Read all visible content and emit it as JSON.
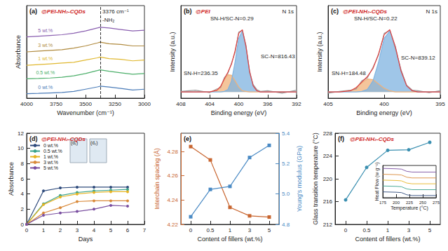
{
  "chart_data": [
    {
      "type": "line",
      "title": "(a)",
      "subtitle": "@PEI-NH₂-CQDs",
      "x_label": "Wavenumber (cm⁻¹)",
      "y_label": "Absorbance",
      "x": [
        4000,
        3900,
        3800,
        3700,
        3600,
        3500,
        3400,
        3376,
        3300,
        3200,
        3100,
        3000
      ],
      "xlim": [
        4000,
        3000
      ],
      "xticks": [
        4000,
        3750,
        3500,
        3250,
        3000
      ],
      "ylim": [
        -0.2,
        6
      ],
      "tick_labels": "x",
      "grid": false,
      "annotations": [
        {
          "text": "3376 cm⁻¹",
          "x": 3376
        },
        {
          "text": "-NH₂"
        }
      ],
      "series": [
        {
          "name": "5 wt.%",
          "color": "#8a5fb0",
          "values": [
            3.9,
            3.95,
            4.0,
            4.05,
            4.15,
            4.3,
            4.5,
            4.55,
            4.5,
            4.4,
            4.3,
            4.35
          ]
        },
        {
          "name": "3 wt.%",
          "color": "#b08a3e",
          "values": [
            2.9,
            2.95,
            3.0,
            3.05,
            3.15,
            3.3,
            3.5,
            3.55,
            3.45,
            3.4,
            3.3,
            3.3
          ]
        },
        {
          "name": "1 wt.%",
          "color": "#e0b830",
          "values": [
            2.0,
            2.05,
            2.1,
            2.15,
            2.2,
            2.35,
            2.5,
            2.55,
            2.45,
            2.4,
            2.3,
            2.35
          ]
        },
        {
          "name": "0.5 wt.%",
          "color": "#4caf6a",
          "values": [
            1.1,
            1.12,
            1.15,
            1.2,
            1.3,
            1.45,
            1.65,
            1.7,
            1.6,
            1.5,
            1.4,
            1.45
          ]
        },
        {
          "name": "0 wt.%",
          "color": "#4a7bb8",
          "values": [
            0.1,
            0.12,
            0.15,
            0.18,
            0.25,
            0.4,
            0.55,
            0.6,
            0.55,
            0.45,
            0.35,
            0.4
          ]
        }
      ]
    },
    {
      "type": "line",
      "title": "(b)",
      "subtitle": "@PEI",
      "x_label": "Binding energy (eV)",
      "y_label": "Intensity (a.u.)",
      "x": [
        392,
        394,
        396,
        397,
        397.5,
        398,
        398.5,
        399,
        399.5,
        400,
        400.5,
        401,
        401.5,
        402,
        402.5,
        403,
        404,
        406,
        408
      ],
      "xlim": [
        408,
        392
      ],
      "xticks": [
        408,
        404,
        400,
        396,
        392
      ],
      "ylim": [
        -0.1,
        1.4
      ],
      "tick_labels": "x",
      "grid": false,
      "annotations": [
        {
          "text": "N 1s"
        },
        {
          "text": "SN-H/SC-N=0.29"
        },
        {
          "text": "SN-H=236.35"
        },
        {
          "text": "SC-N=816.43"
        }
      ],
      "series": [
        {
          "type": "line",
          "color": "#9a9a9a",
          "values": [
            0.03,
            -0.02,
            0.02,
            0.01,
            0.04,
            0.12,
            0.31,
            0.76,
            1.0,
            0.97,
            0.64,
            0.47,
            0.3,
            0.23,
            0.07,
            0.05,
            -0.01,
            0.03,
            0.01
          ]
        },
        {
          "type": "area",
          "color": "#f0b27a",
          "values": [
            0,
            0,
            0,
            0,
            0,
            0,
            0,
            0.01,
            0.02,
            0.08,
            0.18,
            0.27,
            0.28,
            0.2,
            0.09,
            0.03,
            0,
            0,
            0
          ]
        },
        {
          "type": "area",
          "color": "#7fb3e0",
          "values": [
            0,
            0,
            0,
            0,
            0.02,
            0.1,
            0.34,
            0.73,
            0.99,
            0.87,
            0.49,
            0.18,
            0.04,
            0.01,
            0,
            0,
            0,
            0,
            0
          ]
        },
        {
          "type": "line",
          "color": "#e04040",
          "values": [
            0,
            0,
            0,
            0,
            0.02,
            0.1,
            0.34,
            0.74,
            1.01,
            0.95,
            0.67,
            0.45,
            0.32,
            0.21,
            0.09,
            0.03,
            0,
            0,
            0
          ]
        }
      ]
    },
    {
      "type": "line",
      "title": "(c)",
      "subtitle": "@PEI-NH₂-CQDs",
      "x_label": "Binding energy (eV)",
      "y_label": "Intensity (a.u.)",
      "x": [
        395,
        396,
        397,
        397.5,
        398,
        398.5,
        399,
        399.5,
        400,
        400.5,
        401,
        401.5,
        402,
        402.5,
        403,
        404,
        405
      ],
      "xlim": [
        405,
        395
      ],
      "xticks": [
        405,
        400,
        395
      ],
      "ylim": [
        -0.1,
        1.4
      ],
      "tick_labels": "x",
      "grid": false,
      "annotations": [
        {
          "text": "N 1s"
        },
        {
          "text": "SN-H/SC-N=0.22"
        },
        {
          "text": "SN-H=184.48"
        },
        {
          "text": "SC-N=839.12"
        }
      ],
      "series": [
        {
          "type": "line",
          "color": "#9a9a9a",
          "values": [
            0.02,
            -0.01,
            0.02,
            0.03,
            0.11,
            0.36,
            0.7,
            1.0,
            0.95,
            0.6,
            0.4,
            0.23,
            0.18,
            0.05,
            0.03,
            0.01,
            -0.02
          ]
        },
        {
          "type": "area",
          "color": "#f0b27a",
          "values": [
            0,
            0,
            0,
            0,
            0,
            0,
            0,
            0.02,
            0.06,
            0.13,
            0.2,
            0.21,
            0.15,
            0.07,
            0.02,
            0,
            0
          ]
        },
        {
          "type": "area",
          "color": "#7fb3e0",
          "values": [
            0,
            0,
            0,
            0.02,
            0.1,
            0.34,
            0.73,
            0.99,
            0.87,
            0.49,
            0.18,
            0.04,
            0.01,
            0,
            0,
            0,
            0
          ]
        },
        {
          "type": "line",
          "color": "#e04040",
          "values": [
            0,
            0,
            0,
            0.02,
            0.1,
            0.34,
            0.73,
            1.01,
            0.93,
            0.62,
            0.38,
            0.25,
            0.16,
            0.07,
            0.02,
            0,
            0
          ]
        }
      ]
    },
    {
      "type": "line",
      "title": "(d)",
      "subtitle": "@PEI-NH₂-CQDs",
      "x_label": "Days",
      "y_label": "Absorbance",
      "x": [
        0,
        1,
        2,
        3,
        4,
        5,
        6
      ],
      "xlim": [
        0,
        7
      ],
      "xticks": [
        0,
        1,
        2,
        3,
        4,
        5,
        6,
        7
      ],
      "ylim": [
        0,
        12
      ],
      "yticks": [
        0,
        2,
        4,
        6,
        8,
        10,
        12
      ],
      "grid": false,
      "legend": "upper left",
      "marker": "circle",
      "annotations": [
        {
          "text": "(d₁)"
        },
        {
          "text": "(d₂)"
        }
      ],
      "series": [
        {
          "name": "0 wt.%",
          "color": "#2f4b7c",
          "values": [
            0,
            4.4,
            4.8,
            4.9,
            4.9,
            4.9,
            4.9
          ]
        },
        {
          "name": "0.5 wt.%",
          "color": "#3aa38b",
          "values": [
            0,
            2.7,
            3.8,
            4.2,
            4.4,
            4.5,
            4.6
          ]
        },
        {
          "name": "1 wt.%",
          "color": "#e6b422",
          "values": [
            0,
            2.6,
            3.6,
            4.0,
            4.2,
            4.3,
            4.3
          ]
        },
        {
          "name": "3 wt.%",
          "color": "#d98a3a",
          "values": [
            0,
            1.5,
            2.2,
            3.0,
            3.1,
            3.1,
            3.1
          ]
        },
        {
          "name": "5 wt.%",
          "color": "#7a4fa0",
          "values": [
            0,
            1.2,
            1.5,
            1.7,
            2.0,
            2.5,
            2.4
          ]
        }
      ]
    },
    {
      "type": "line",
      "title": "(e)",
      "x_label": "Content of fillers (wt.%)",
      "y_label": "Interchain spacing (Å)",
      "y2_label": "Young's modulus (GPa)",
      "categories": [
        "0",
        "0.5",
        "1",
        "3",
        "5"
      ],
      "ylim": [
        4.22,
        4.295
      ],
      "yticks": [
        4.22,
        4.24,
        4.26,
        4.28
      ],
      "y2lim": [
        4.8,
        5.4
      ],
      "y2ticks": [
        4.8,
        {
          "value": 5,
          "label": "5.0"
        },
        5.2,
        5.4
      ],
      "grid": false,
      "marker": "square",
      "series": [
        {
          "color": "#c8652f",
          "values": [
            4.284,
            4.273,
            4.234,
            4.227,
            4.226
          ]
        },
        {
          "color": "#4a8ac4",
          "axis": "y2",
          "values": [
            4.85,
            5.03,
            5.05,
            5.24,
            5.32
          ]
        }
      ]
    },
    {
      "type": "line",
      "title": "(f)",
      "subtitle": "@PEI-NH₂-CQDs",
      "x_label": "Content of fillers (wt.%)",
      "y_label": "Glass transition temperature (°C)",
      "categories": [
        "0",
        "0.5",
        "1",
        "3",
        "5"
      ],
      "ylim": [
        212,
        228
      ],
      "yticks": [
        212,
        216,
        220,
        224,
        228
      ],
      "grid": false,
      "marker": "circle",
      "series": [
        {
          "color": "#3a8fb0",
          "values": [
            216.3,
            222.0,
            225.0,
            225.1,
            226.4
          ]
        }
      ]
    },
    {
      "type": "line",
      "x_label": "Temperature (°C)",
      "y_label": "Heat Flow (w g⁻¹)",
      "x": [
        175,
        200,
        210,
        220,
        230,
        250,
        275
      ],
      "xlim": [
        175,
        275
      ],
      "xticks": [
        175,
        200,
        225,
        250,
        275
      ],
      "ylim": [
        0,
        4.4
      ],
      "tick_labels": "x",
      "grid": false,
      "series": [
        {
          "color": "#7a4fa0",
          "values": [
            4.0,
            3.95,
            3.9,
            3.6,
            3.5,
            3.5,
            3.5
          ]
        },
        {
          "color": "#d98a3a",
          "values": [
            3.2,
            3.15,
            3.1,
            2.8,
            2.7,
            2.7,
            2.7
          ]
        },
        {
          "color": "#e6b422",
          "values": [
            2.4,
            2.35,
            2.3,
            2.0,
            1.9,
            1.9,
            1.9
          ]
        },
        {
          "color": "#3aa38b",
          "values": [
            1.6,
            1.55,
            1.5,
            1.2,
            1.1,
            1.1,
            1.1
          ]
        },
        {
          "color": "#2f4b7c",
          "values": [
            0.8,
            0.75,
            0.7,
            0.4,
            0.3,
            0.3,
            0.3
          ]
        }
      ]
    }
  ]
}
